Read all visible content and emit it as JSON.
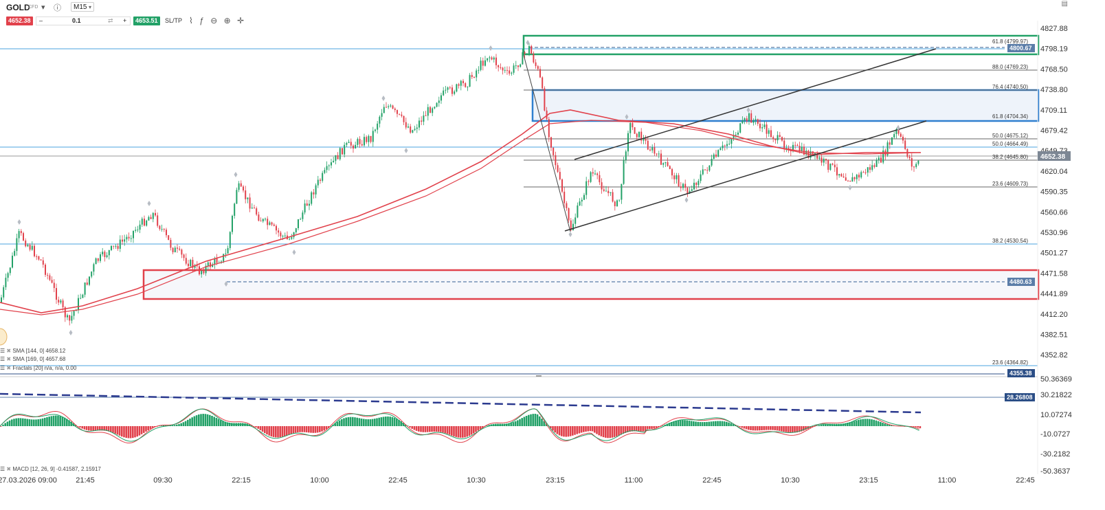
{
  "header": {
    "symbol": "GOLD",
    "symbol_sub": "CFD",
    "timeframe": "M15",
    "sell_price": "4652.38",
    "buy_price": "4653.51",
    "quantity": "0.1",
    "minus_label": "–",
    "plus_label": "+",
    "sltp_label": "SL/TP"
  },
  "price_axis": {
    "labels": [
      "4827.88",
      "4798.19",
      "4768.50",
      "4738.80",
      "4709.11",
      "4679.42",
      "4649.73",
      "4620.04",
      "4590.35",
      "4560.66",
      "4530.96",
      "4501.27",
      "4471.58",
      "4441.89",
      "4412.20",
      "4382.51",
      "4352.82"
    ],
    "current_price_tag": "4652.38",
    "tags": [
      {
        "text": "4800.67",
        "color": "#5b7da8"
      },
      {
        "text": "4480.63",
        "color": "#5b7da8"
      },
      {
        "text": "4355.38",
        "color": "#2b4e86"
      }
    ]
  },
  "fib_labels": [
    {
      "text": "61.8 (4799.97)",
      "color": "#4aa3df"
    },
    {
      "text": "88.0 (4769.23)",
      "color": "#333333"
    },
    {
      "text": "76.4 (4740.50)",
      "color": "#333333"
    },
    {
      "text": "61.8 (4704.34)",
      "color": "#333333"
    },
    {
      "text": "50.0 (4675.12)",
      "color": "#333333"
    },
    {
      "text": "50.0 (4664.49)",
      "color": "#4aa3df"
    },
    {
      "text": "38.2 (4645.80)",
      "color": "#333333"
    },
    {
      "text": "23.6 (4609.73)",
      "color": "#333333"
    },
    {
      "text": "38.2 (4530.54)",
      "color": "#4aa3df"
    },
    {
      "text": "23.6 (4364.82)",
      "color": "#333333"
    }
  ],
  "indicators": {
    "sma1": "SMA [144, 0] 4658.12",
    "sma2": "SMA [169, 0] 4657.68",
    "fractals": "Fractals [20] n/a, n/a, 0.00",
    "macd": "MACD [12, 26, 9] -0.41587, 2.15917"
  },
  "macd_axis": {
    "labels": [
      "50.36369",
      "30.21822",
      "10.07274",
      "-10.0727",
      "-30.2182",
      "-50.3637"
    ],
    "tag": "28.26808"
  },
  "time_axis": [
    "27.03.2026 09:00",
    "21:45",
    "09:30",
    "22:15",
    "10:00",
    "22:45",
    "10:30",
    "23:15",
    "11:00",
    "22:45",
    "10:30",
    "23:15",
    "11:00",
    "22:45"
  ],
  "colors": {
    "bull": "#22a167",
    "bear": "#e1414b",
    "sma": "#e1414b",
    "fib_blue": "#4aa3df",
    "zone_green": "#22a167",
    "zone_blue": "#2f7fcf",
    "zone_red": "#e1414b",
    "macd_dash": "#2b3a8f"
  }
}
